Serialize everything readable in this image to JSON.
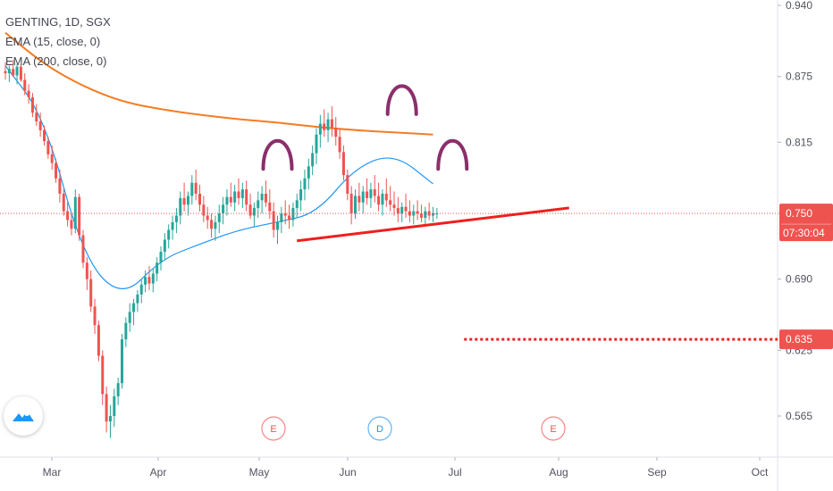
{
  "header": {
    "symbol_line": "GENTING, 1D, SGX",
    "ema_fast": "EMA (15, close, 0)",
    "ema_slow": "EMA (200, close, 0)"
  },
  "price_axis": {
    "ticks": [
      "0.940",
      "0.875",
      "0.815",
      "0.750",
      "0.690",
      "0.625",
      "0.565"
    ],
    "current_price_label": "0.750",
    "countdown_label": "07:30:04",
    "target_price_label": "0.635"
  },
  "time_axis": {
    "ticks": [
      "Mar",
      "Apr",
      "May",
      "Jun",
      "Jul",
      "Aug",
      "Sep",
      "Oct"
    ]
  },
  "event_markers": [
    {
      "letter": "E",
      "month": "May",
      "kind": "earnings"
    },
    {
      "letter": "D",
      "month": "Jun",
      "kind": "dividend"
    },
    {
      "letter": "E",
      "month": "Aug",
      "kind": "earnings"
    }
  ],
  "colors": {
    "up": "#26a69a",
    "down": "#ef5350",
    "ema15": "#2196f3",
    "ema200": "#f57c23",
    "neckline": "#f01e1e",
    "arc": "#8b2f6b",
    "axis_text": "#50535e",
    "current_price_bg": "#ef5350"
  },
  "chart_data": {
    "type": "candlestick",
    "title": "GENTING, 1D, SGX",
    "ylim": [
      0.545,
      0.95
    ],
    "y_ticks": [
      0.94,
      0.875,
      0.815,
      0.75,
      0.69,
      0.625,
      0.565
    ],
    "x_ticks": [
      "Mar",
      "Apr",
      "May",
      "Jun",
      "Jul",
      "Aug",
      "Sep",
      "Oct"
    ],
    "series": [
      {
        "name": "EMA (15, close, 0)",
        "type": "line",
        "x": [
          0,
          10,
          20,
          30,
          40,
          50,
          60,
          70,
          80,
          90,
          100,
          110
        ],
        "values": [
          0.885,
          0.838,
          0.71,
          0.672,
          0.708,
          0.722,
          0.735,
          0.742,
          0.75,
          0.792,
          0.805,
          0.777
        ]
      },
      {
        "name": "EMA (200, close, 0)",
        "type": "line",
        "x": [
          0,
          10,
          20,
          30,
          40,
          50,
          60,
          70,
          80,
          90,
          100,
          110
        ],
        "values": [
          0.915,
          0.886,
          0.866,
          0.852,
          0.845,
          0.84,
          0.836,
          0.833,
          0.829,
          0.826,
          0.824,
          0.822
        ]
      },
      {
        "name": "OHLC",
        "type": "candlestick",
        "x": [
          0,
          1,
          2,
          3,
          4,
          5,
          6,
          7,
          8,
          9,
          10,
          11,
          12,
          13,
          14,
          15,
          16,
          17,
          18,
          19,
          20,
          21,
          22,
          23,
          24,
          25,
          26,
          27,
          28,
          29,
          30,
          31,
          32,
          33,
          34,
          35,
          36,
          37,
          38,
          39,
          40,
          41,
          42,
          43,
          44,
          45,
          46,
          47,
          48,
          49,
          50,
          51,
          52,
          53,
          54,
          55,
          56,
          57,
          58,
          59,
          60,
          61,
          62,
          63,
          64,
          65,
          66,
          67,
          68,
          69,
          70,
          71,
          72,
          73,
          74,
          75,
          76,
          77,
          78,
          79,
          80,
          81,
          82,
          83,
          84,
          85,
          86,
          87,
          88,
          89,
          90,
          91,
          92,
          93,
          94,
          95,
          96,
          97,
          98,
          99,
          100,
          101,
          102,
          103,
          104,
          105,
          106,
          107,
          108,
          109,
          110,
          111
        ],
        "ohlc": [
          [
            0.88,
            0.888,
            0.872,
            0.878
          ],
          [
            0.878,
            0.885,
            0.87,
            0.882
          ],
          [
            0.882,
            0.89,
            0.875,
            0.876
          ],
          [
            0.876,
            0.886,
            0.868,
            0.884
          ],
          [
            0.884,
            0.886,
            0.87,
            0.872
          ],
          [
            0.872,
            0.878,
            0.858,
            0.862
          ],
          [
            0.862,
            0.868,
            0.85,
            0.856
          ],
          [
            0.856,
            0.86,
            0.838,
            0.842
          ],
          [
            0.842,
            0.85,
            0.83,
            0.834
          ],
          [
            0.834,
            0.842,
            0.82,
            0.826
          ],
          [
            0.826,
            0.83,
            0.812,
            0.816
          ],
          [
            0.816,
            0.82,
            0.8,
            0.804
          ],
          [
            0.804,
            0.812,
            0.79,
            0.796
          ],
          [
            0.796,
            0.8,
            0.778,
            0.782
          ],
          [
            0.782,
            0.79,
            0.76,
            0.768
          ],
          [
            0.768,
            0.772,
            0.748,
            0.752
          ],
          [
            0.752,
            0.76,
            0.738,
            0.744
          ],
          [
            0.744,
            0.75,
            0.73,
            0.736
          ],
          [
            0.736,
            0.772,
            0.732,
            0.765
          ],
          [
            0.765,
            0.768,
            0.725,
            0.73
          ],
          [
            0.73,
            0.735,
            0.7,
            0.705
          ],
          [
            0.705,
            0.71,
            0.68,
            0.69
          ],
          [
            0.69,
            0.698,
            0.66,
            0.665
          ],
          [
            0.665,
            0.672,
            0.64,
            0.648
          ],
          [
            0.648,
            0.652,
            0.615,
            0.62
          ],
          [
            0.62,
            0.625,
            0.575,
            0.585
          ],
          [
            0.585,
            0.592,
            0.55,
            0.56
          ],
          [
            0.56,
            0.575,
            0.545,
            0.565
          ],
          [
            0.565,
            0.59,
            0.555,
            0.583
          ],
          [
            0.583,
            0.6,
            0.575,
            0.595
          ],
          [
            0.595,
            0.64,
            0.59,
            0.635
          ],
          [
            0.635,
            0.655,
            0.628,
            0.65
          ],
          [
            0.65,
            0.668,
            0.642,
            0.66
          ],
          [
            0.66,
            0.672,
            0.648,
            0.668
          ],
          [
            0.668,
            0.68,
            0.66,
            0.676
          ],
          [
            0.676,
            0.69,
            0.668,
            0.685
          ],
          [
            0.685,
            0.698,
            0.678,
            0.692
          ],
          [
            0.692,
            0.702,
            0.68,
            0.686
          ],
          [
            0.686,
            0.7,
            0.678,
            0.695
          ],
          [
            0.695,
            0.71,
            0.688,
            0.705
          ],
          [
            0.705,
            0.72,
            0.698,
            0.715
          ],
          [
            0.715,
            0.732,
            0.708,
            0.726
          ],
          [
            0.726,
            0.74,
            0.718,
            0.735
          ],
          [
            0.735,
            0.748,
            0.726,
            0.742
          ],
          [
            0.742,
            0.755,
            0.732,
            0.748
          ],
          [
            0.748,
            0.77,
            0.74,
            0.764
          ],
          [
            0.764,
            0.778,
            0.752,
            0.758
          ],
          [
            0.758,
            0.77,
            0.748,
            0.766
          ],
          [
            0.766,
            0.785,
            0.758,
            0.778
          ],
          [
            0.778,
            0.79,
            0.762,
            0.768
          ],
          [
            0.768,
            0.776,
            0.752,
            0.758
          ],
          [
            0.758,
            0.766,
            0.742,
            0.748
          ],
          [
            0.748,
            0.756,
            0.736,
            0.744
          ],
          [
            0.744,
            0.75,
            0.728,
            0.736
          ],
          [
            0.736,
            0.748,
            0.725,
            0.742
          ],
          [
            0.742,
            0.758,
            0.732,
            0.75
          ],
          [
            0.75,
            0.765,
            0.74,
            0.758
          ],
          [
            0.758,
            0.772,
            0.748,
            0.765
          ],
          [
            0.765,
            0.778,
            0.756,
            0.76
          ],
          [
            0.76,
            0.776,
            0.752,
            0.77
          ],
          [
            0.77,
            0.782,
            0.758,
            0.764
          ],
          [
            0.764,
            0.778,
            0.755,
            0.772
          ],
          [
            0.772,
            0.78,
            0.752,
            0.758
          ],
          [
            0.758,
            0.768,
            0.745,
            0.748
          ],
          [
            0.748,
            0.76,
            0.738,
            0.755
          ],
          [
            0.755,
            0.77,
            0.746,
            0.762
          ],
          [
            0.762,
            0.775,
            0.75,
            0.768
          ],
          [
            0.768,
            0.78,
            0.756,
            0.76
          ],
          [
            0.76,
            0.772,
            0.745,
            0.752
          ],
          [
            0.752,
            0.76,
            0.728,
            0.735
          ],
          [
            0.735,
            0.748,
            0.722,
            0.742
          ],
          [
            0.742,
            0.756,
            0.732,
            0.75
          ],
          [
            0.75,
            0.762,
            0.74,
            0.748
          ],
          [
            0.748,
            0.758,
            0.736,
            0.744
          ],
          [
            0.744,
            0.76,
            0.738,
            0.755
          ],
          [
            0.755,
            0.768,
            0.746,
            0.762
          ],
          [
            0.762,
            0.78,
            0.752,
            0.772
          ],
          [
            0.772,
            0.79,
            0.762,
            0.782
          ],
          [
            0.782,
            0.8,
            0.772,
            0.793
          ],
          [
            0.793,
            0.812,
            0.785,
            0.805
          ],
          [
            0.805,
            0.828,
            0.795,
            0.822
          ],
          [
            0.822,
            0.84,
            0.81,
            0.832
          ],
          [
            0.832,
            0.845,
            0.82,
            0.826
          ],
          [
            0.826,
            0.842,
            0.815,
            0.836
          ],
          [
            0.836,
            0.848,
            0.82,
            0.828
          ],
          [
            0.828,
            0.838,
            0.812,
            0.82
          ],
          [
            0.82,
            0.828,
            0.8,
            0.806
          ],
          [
            0.806,
            0.812,
            0.78,
            0.785
          ],
          [
            0.785,
            0.79,
            0.762,
            0.768
          ],
          [
            0.768,
            0.775,
            0.74,
            0.75
          ],
          [
            0.75,
            0.772,
            0.745,
            0.766
          ],
          [
            0.766,
            0.778,
            0.752,
            0.76
          ],
          [
            0.76,
            0.775,
            0.75,
            0.77
          ],
          [
            0.77,
            0.782,
            0.758,
            0.764
          ],
          [
            0.764,
            0.778,
            0.755,
            0.772
          ],
          [
            0.772,
            0.785,
            0.76,
            0.766
          ],
          [
            0.766,
            0.778,
            0.752,
            0.758
          ],
          [
            0.758,
            0.772,
            0.748,
            0.768
          ],
          [
            0.768,
            0.782,
            0.756,
            0.762
          ],
          [
            0.762,
            0.775,
            0.752,
            0.758
          ],
          [
            0.758,
            0.77,
            0.748,
            0.755
          ],
          [
            0.755,
            0.765,
            0.742,
            0.75
          ],
          [
            0.75,
            0.76,
            0.742,
            0.756
          ],
          [
            0.756,
            0.768,
            0.746,
            0.752
          ],
          [
            0.752,
            0.762,
            0.742,
            0.748
          ],
          [
            0.748,
            0.758,
            0.74,
            0.752
          ],
          [
            0.752,
            0.762,
            0.744,
            0.75
          ],
          [
            0.75,
            0.758,
            0.742,
            0.746
          ],
          [
            0.746,
            0.756,
            0.74,
            0.752
          ],
          [
            0.752,
            0.76,
            0.744,
            0.748
          ],
          [
            0.748,
            0.756,
            0.742,
            0.75
          ],
          [
            0.75,
            0.755,
            0.745,
            0.75
          ]
        ]
      }
    ],
    "annotations": [
      {
        "type": "line",
        "name": "neckline",
        "from": {
          "x": 75,
          "y": 0.725
        },
        "to": {
          "x": 145,
          "y": 0.755
        }
      },
      {
        "type": "arc",
        "name": "left-shoulder",
        "x_center": 70,
        "y_peak": 0.82
      },
      {
        "type": "arc",
        "name": "head",
        "x_center": 102,
        "y_peak": 0.87
      },
      {
        "type": "arc",
        "name": "right-shoulder",
        "x_center": 115,
        "y_peak": 0.82
      },
      {
        "type": "hline",
        "name": "target",
        "y": 0.635,
        "from_x": 118
      },
      {
        "type": "hline",
        "name": "current-price",
        "y": 0.75
      }
    ],
    "grid": false,
    "legend": "top-left"
  }
}
